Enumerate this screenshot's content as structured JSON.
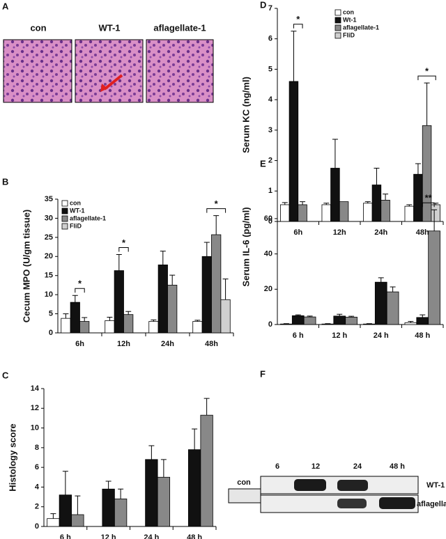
{
  "histology": {
    "panel": "A",
    "labels": [
      "con",
      "WT-1",
      "aflagellate-1"
    ]
  },
  "blot": {
    "panel": "F",
    "lanes": [
      "6",
      "12",
      "24",
      "48 h"
    ],
    "control": "con",
    "rows": [
      "WT-1",
      "aflagellate-1"
    ]
  },
  "chart_data": [
    {
      "panel": "D",
      "type": "bar",
      "ylabel": "Serum KC (ng/ml)",
      "categories": [
        "6h",
        "12h",
        "24h",
        "48h"
      ],
      "series": [
        {
          "name": "con",
          "color": "#ffffff",
          "values": [
            0.55,
            0.55,
            0.6,
            0.5
          ],
          "errors": [
            0.07,
            0.05,
            0.05,
            0.05
          ]
        },
        {
          "name": "Wt-1",
          "color": "#111111",
          "values": [
            4.6,
            1.75,
            1.2,
            1.55
          ],
          "errors": [
            1.65,
            0.95,
            0.55,
            0.35
          ]
        },
        {
          "name": "aflagellate-1",
          "color": "#888888",
          "values": [
            0.55,
            0.65,
            0.7,
            3.15
          ],
          "errors": [
            0.1,
            null,
            0.2,
            1.4
          ]
        },
        {
          "name": "FliD",
          "color": "#d0d0d0",
          "values": [
            null,
            null,
            null,
            0.55
          ],
          "errors": [
            null,
            null,
            null,
            0.05
          ]
        }
      ],
      "ylim": [
        0,
        7
      ],
      "yticks": [
        0,
        1,
        2,
        3,
        4,
        5,
        6,
        7
      ],
      "legend": "upper center",
      "annotations": [
        {
          "text": "*",
          "category": "6h"
        },
        {
          "text": "*",
          "category": "48h"
        }
      ]
    },
    {
      "panel": "B",
      "type": "bar",
      "ylabel": "Cecum MPO (U/gm tissue)",
      "categories": [
        "6h",
        "12h",
        "24h",
        "48h"
      ],
      "series": [
        {
          "name": "con",
          "color": "#ffffff",
          "values": [
            3.8,
            3.2,
            3,
            3
          ],
          "errors": [
            1.2,
            0.9,
            0.4,
            0.3
          ]
        },
        {
          "name": "WT-1",
          "color": "#111111",
          "values": [
            8,
            16.3,
            17.8,
            20
          ],
          "errors": [
            1.8,
            4.2,
            3.6,
            3.7
          ]
        },
        {
          "name": "aflagellate-1",
          "color": "#888888",
          "values": [
            3,
            4.8,
            12.5,
            25.7
          ],
          "errors": [
            1,
            0.8,
            2.6,
            5
          ]
        },
        {
          "name": "FliD",
          "color": "#d0d0d0",
          "values": [
            null,
            null,
            null,
            8.7
          ],
          "errors": [
            null,
            null,
            null,
            5.4
          ]
        }
      ],
      "ylim": [
        0,
        35
      ],
      "yticks": [
        0,
        5,
        10,
        15,
        20,
        25,
        30,
        35
      ],
      "legend": "upper left",
      "annotations": [
        {
          "text": "*",
          "category": "6h"
        },
        {
          "text": "*",
          "category": "12h"
        },
        {
          "text": "*",
          "category": "48h"
        }
      ]
    },
    {
      "panel": "E",
      "type": "bar",
      "ylabel": "Serum IL-6 (pg/ml)",
      "categories": [
        "6 h",
        "12 h",
        "24 h",
        "48 h"
      ],
      "series": [
        {
          "color": "#ffffff",
          "values": [
            0.3,
            0.3,
            0.3,
            1
          ],
          "errors": [
            0.2,
            0.2,
            0.2,
            0.8
          ]
        },
        {
          "color": "#111111",
          "values": [
            5,
            4.8,
            24,
            4
          ],
          "errors": [
            0.5,
            1,
            2.5,
            1.5
          ]
        },
        {
          "color": "#888888",
          "values": [
            4.3,
            4.2,
            18.5,
            53
          ],
          "errors": [
            0.5,
            0.5,
            2.8,
            12
          ]
        }
      ],
      "ylim": [
        0,
        88
      ],
      "yticks": [
        0,
        20,
        40,
        60
      ],
      "annotations": [
        {
          "text": "**",
          "category": "48 h"
        }
      ]
    },
    {
      "panel": "C",
      "type": "bar",
      "ylabel": "Histology score",
      "categories": [
        "6 h",
        "12 h",
        "24 h",
        "48 h"
      ],
      "series": [
        {
          "color": "#ffffff",
          "values": [
            0.8,
            null,
            null,
            null
          ],
          "errors": [
            0.5,
            null,
            null,
            null
          ]
        },
        {
          "color": "#111111",
          "values": [
            3.2,
            3.8,
            6.8,
            7.8
          ],
          "errors": [
            2.4,
            0.8,
            1.4,
            2.1
          ]
        },
        {
          "color": "#888888",
          "values": [
            1.2,
            2.8,
            5,
            11.3
          ],
          "errors": [
            1.9,
            1,
            1.8,
            1.7
          ]
        }
      ],
      "ylim": [
        0,
        14
      ],
      "yticks": [
        0,
        2,
        4,
        6,
        8,
        10,
        12,
        14
      ]
    }
  ]
}
